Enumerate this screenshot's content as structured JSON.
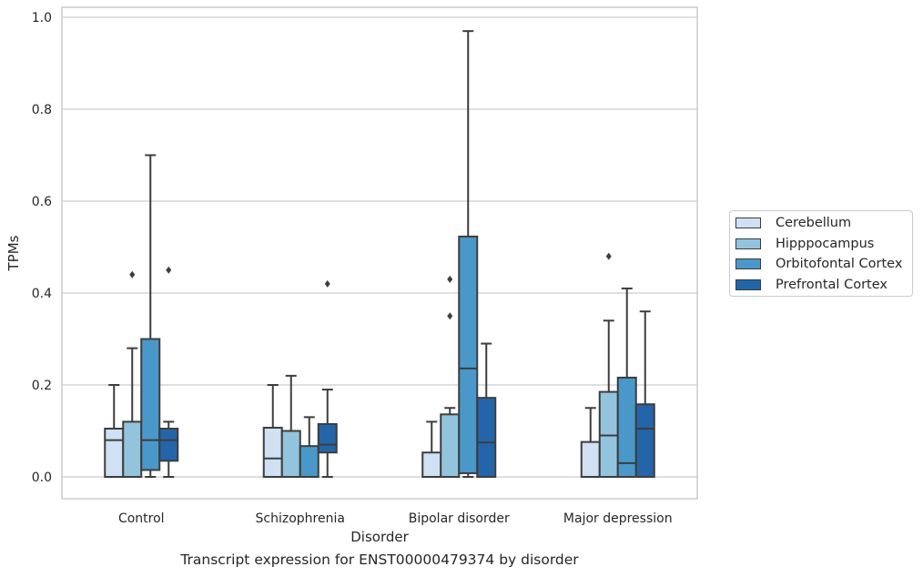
{
  "chart_data": {
    "type": "box",
    "title": "",
    "caption": "Transcript expression for ENST00000479374 by disorder",
    "xlabel": "Disorder",
    "ylabel": "TPMs",
    "ylim": [
      -0.045,
      1.02
    ],
    "yticks": [
      "0.0",
      "0.2",
      "0.4",
      "0.6",
      "0.8",
      "1.0"
    ],
    "grid": "horizontal",
    "legend_position": "right",
    "categories": [
      "Control",
      "Schizophrenia",
      "Bipolar disorder",
      "Major depression"
    ],
    "series": [
      {
        "name": "Cerebellum",
        "color": "#cfe1f2",
        "boxes": [
          {
            "whislo": 0.0,
            "q1": 0.0,
            "med": 0.08,
            "q3": 0.105,
            "whishi": 0.2,
            "fliers": []
          },
          {
            "whislo": 0.0,
            "q1": 0.0,
            "med": 0.04,
            "q3": 0.107,
            "whishi": 0.2,
            "fliers": []
          },
          {
            "whislo": 0.0,
            "q1": 0.0,
            "med": 0.0,
            "q3": 0.053,
            "whishi": 0.12,
            "fliers": []
          },
          {
            "whislo": 0.0,
            "q1": 0.0,
            "med": 0.0,
            "q3": 0.076,
            "whishi": 0.15,
            "fliers": []
          }
        ]
      },
      {
        "name": "Hipppocampus",
        "color": "#93c4de",
        "boxes": [
          {
            "whislo": 0.0,
            "q1": 0.0,
            "med": 0.0,
            "q3": 0.12,
            "whishi": 0.28,
            "fliers": [
              0.44
            ]
          },
          {
            "whislo": 0.0,
            "q1": 0.0,
            "med": 0.0,
            "q3": 0.1,
            "whishi": 0.22,
            "fliers": []
          },
          {
            "whislo": 0.0,
            "q1": 0.0,
            "med": 0.0,
            "q3": 0.136,
            "whishi": 0.15,
            "fliers": [
              0.35,
              0.43
            ]
          },
          {
            "whislo": 0.0,
            "q1": 0.0,
            "med": 0.09,
            "q3": 0.185,
            "whishi": 0.34,
            "fliers": [
              0.48
            ]
          }
        ]
      },
      {
        "name": "Orbitofontal Cortex",
        "color": "#4a98c9",
        "boxes": [
          {
            "whislo": 0.0,
            "q1": 0.015,
            "med": 0.08,
            "q3": 0.3,
            "whishi": 0.7,
            "fliers": []
          },
          {
            "whislo": 0.0,
            "q1": 0.0,
            "med": 0.0,
            "q3": 0.067,
            "whishi": 0.13,
            "fliers": []
          },
          {
            "whislo": 0.0,
            "q1": 0.008,
            "med": 0.236,
            "q3": 0.523,
            "whishi": 0.97,
            "fliers": []
          },
          {
            "whislo": 0.0,
            "q1": 0.0,
            "med": 0.03,
            "q3": 0.216,
            "whishi": 0.41,
            "fliers": []
          }
        ]
      },
      {
        "name": "Prefrontal Cortex",
        "color": "#2465a9",
        "boxes": [
          {
            "whislo": 0.0,
            "q1": 0.035,
            "med": 0.08,
            "q3": 0.105,
            "whishi": 0.12,
            "fliers": [
              0.45
            ]
          },
          {
            "whislo": 0.0,
            "q1": 0.053,
            "med": 0.07,
            "q3": 0.115,
            "whishi": 0.19,
            "fliers": [
              0.42
            ]
          },
          {
            "whislo": 0.0,
            "q1": 0.0,
            "med": 0.075,
            "q3": 0.172,
            "whishi": 0.29,
            "fliers": []
          },
          {
            "whislo": 0.0,
            "q1": 0.0,
            "med": 0.105,
            "q3": 0.158,
            "whishi": 0.36,
            "fliers": []
          }
        ]
      }
    ]
  }
}
